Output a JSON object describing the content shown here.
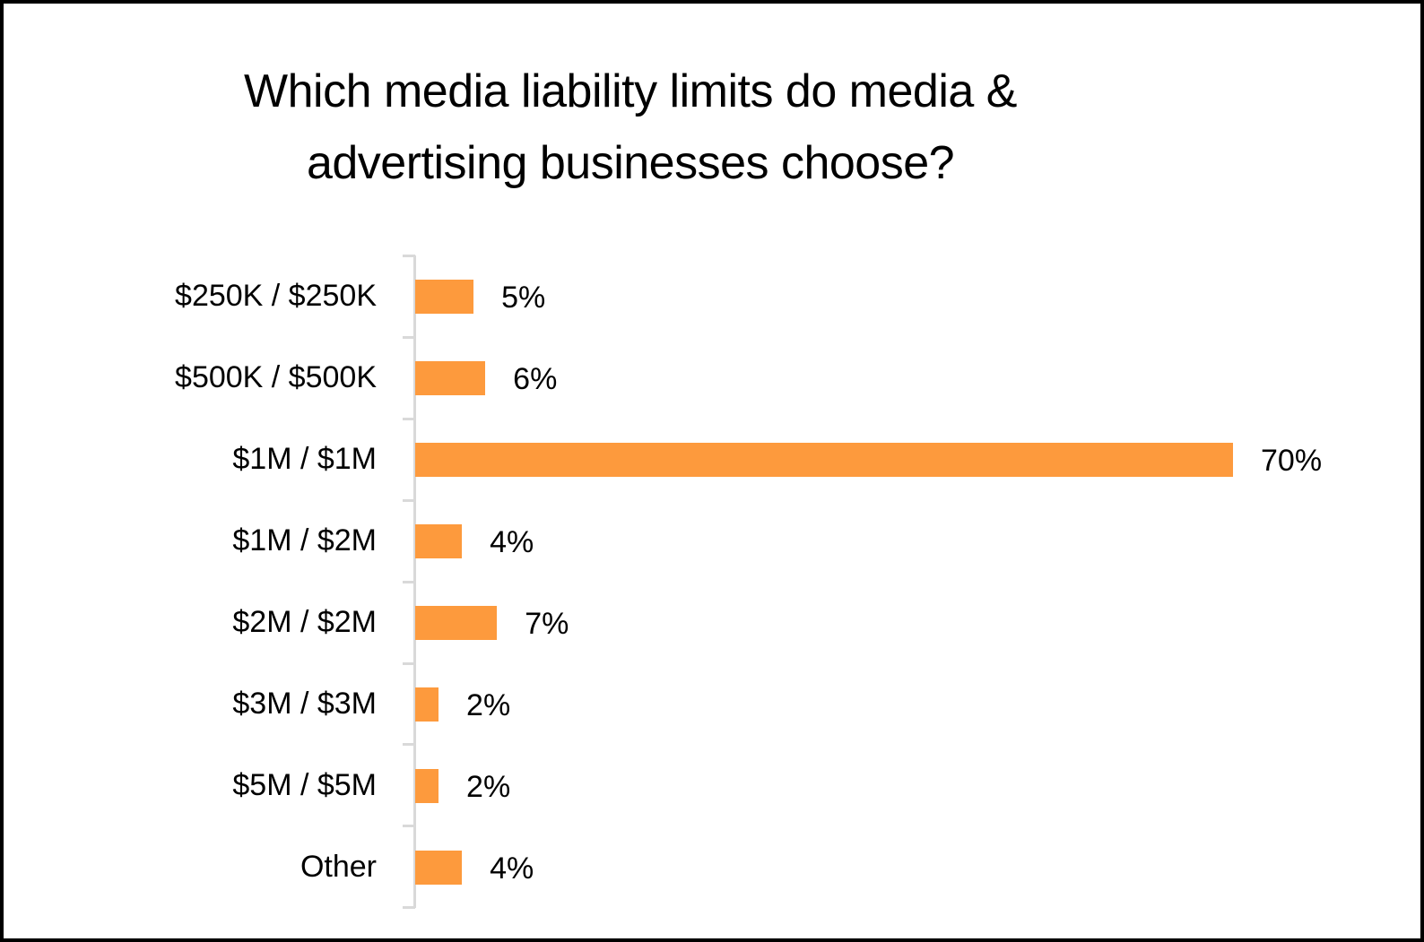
{
  "chart_data": {
    "type": "bar",
    "orientation": "horizontal",
    "title": "Which media liability limits do media & advertising businesses choose?",
    "title_lines": [
      "Which media liability limits do media &",
      "advertising businesses choose?"
    ],
    "categories": [
      "$250K / $250K",
      "$500K / $500K",
      "$1M / $1M",
      "$1M / $2M",
      "$2M / $2M",
      "$3M / $3M",
      "$5M / $5M",
      "Other"
    ],
    "values": [
      5,
      6,
      70,
      4,
      7,
      2,
      2,
      4
    ],
    "value_labels": [
      "5%",
      "6%",
      "70%",
      "4%",
      "7%",
      "2%",
      "2%",
      "4%"
    ],
    "xlabel": "",
    "ylabel": "",
    "xlim": [
      0,
      70
    ],
    "grid": false,
    "legend": null,
    "bar_color": "#fd9a3d",
    "axis_color": "#d9d9d9"
  }
}
